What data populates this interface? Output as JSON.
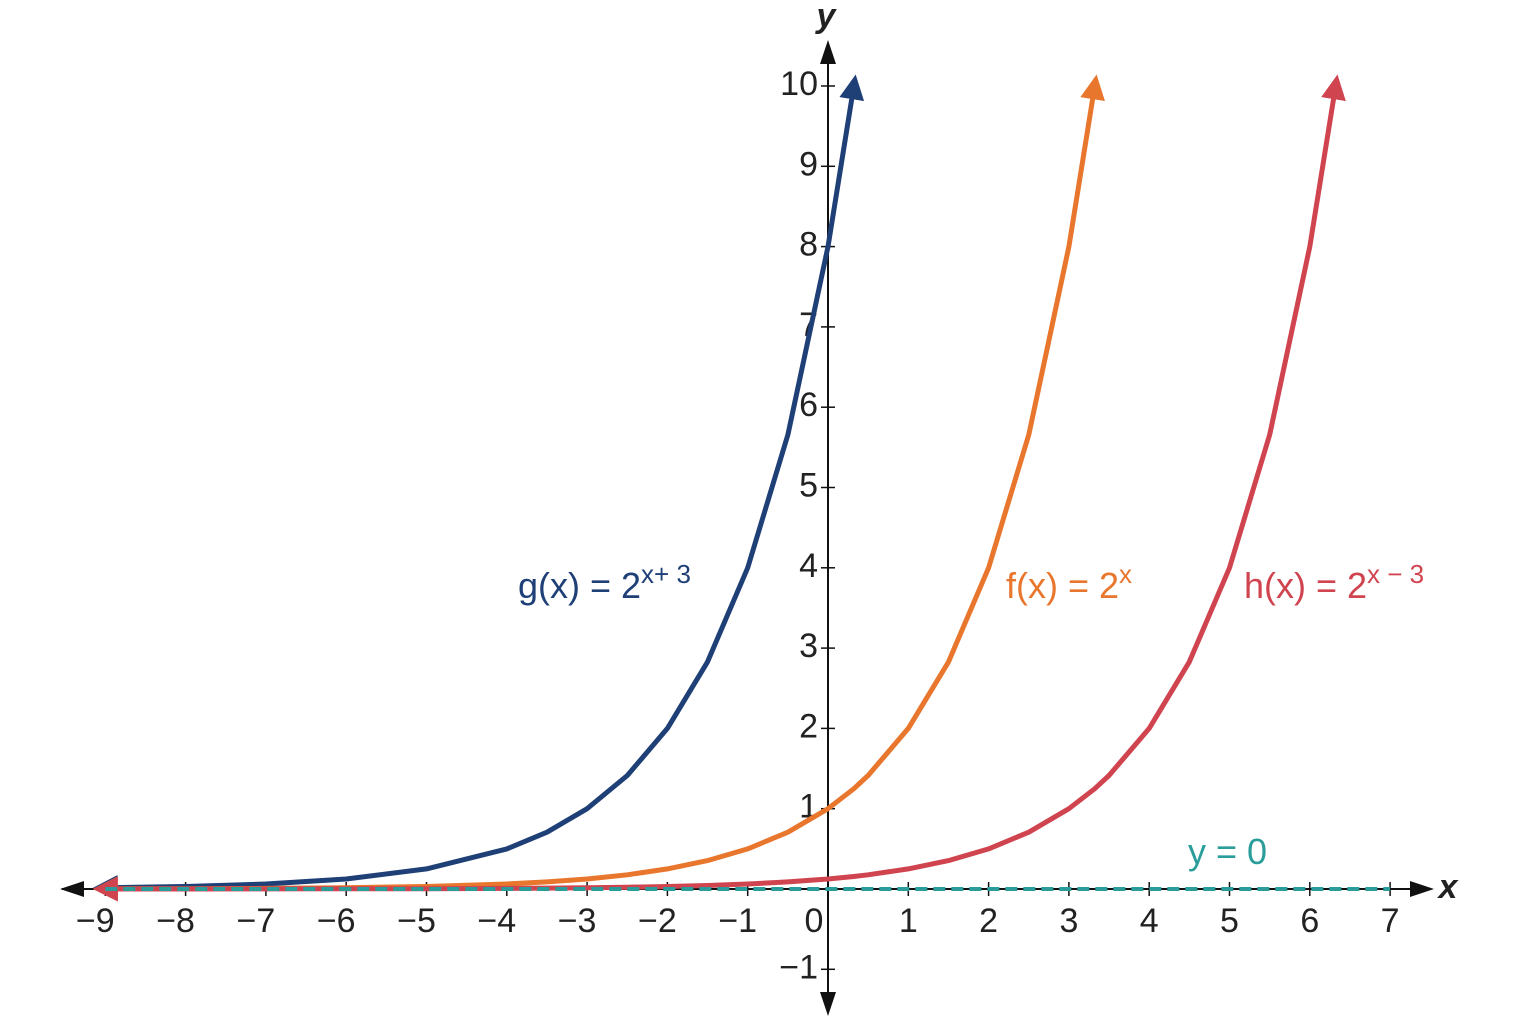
{
  "chart_data": {
    "type": "line",
    "x_label": "x",
    "y_label": "y",
    "xlim": [
      -9.5,
      7.5
    ],
    "ylim": [
      -1.5,
      10.5
    ],
    "xticks": [
      {
        "value": -9,
        "label": "−9"
      },
      {
        "value": -8,
        "label": "−8"
      },
      {
        "value": -7,
        "label": "−7"
      },
      {
        "value": -6,
        "label": "−6"
      },
      {
        "value": -5,
        "label": "−5"
      },
      {
        "value": -4,
        "label": "−4"
      },
      {
        "value": -3,
        "label": "−3"
      },
      {
        "value": -2,
        "label": "−2"
      },
      {
        "value": -1,
        "label": "−1"
      },
      0,
      1,
      2,
      3,
      4,
      5,
      6,
      7
    ],
    "yticks": [
      {
        "value": -1,
        "label": "−1"
      },
      1,
      2,
      3,
      4,
      5,
      6,
      7,
      8,
      9,
      10
    ],
    "x": [
      -9,
      -8,
      -7,
      -6,
      -5,
      -4,
      -3.5,
      -3,
      -2.5,
      -2,
      -1.5,
      -1,
      -0.5,
      0,
      0.32,
      0.5,
      1,
      1.5,
      2,
      2.5,
      3,
      3.32,
      3.5,
      4,
      4.5,
      5,
      5.5,
      6,
      6.32,
      7
    ],
    "series": [
      {
        "name": "g(x) = 2",
        "name_sup": "x+ 3",
        "color": "#1f3f77",
        "values": [
          0.0156,
          0.0313,
          0.0625,
          0.125,
          0.25,
          0.5,
          0.707,
          1,
          1.414,
          2,
          2.828,
          4,
          5.657,
          8,
          9.99,
          null,
          null,
          null,
          null,
          null,
          null,
          null,
          null,
          null,
          null,
          null,
          null,
          null,
          null,
          null
        ]
      },
      {
        "name": "f(x) = 2",
        "name_sup": "x",
        "color": "#e8762d",
        "values": [
          0.002,
          0.0039,
          0.0078,
          0.0156,
          0.0313,
          0.0625,
          0.0884,
          0.125,
          0.177,
          0.25,
          0.354,
          0.5,
          0.707,
          1,
          1.248,
          1.414,
          2,
          2.828,
          4,
          5.657,
          8,
          9.99,
          null,
          null,
          null,
          null,
          null,
          null,
          null,
          null
        ]
      },
      {
        "name": "h(x) = 2",
        "name_sup": "x − 3",
        "color": "#d0444f",
        "values": [
          0.0002,
          0.0005,
          0.001,
          0.002,
          0.0039,
          0.0078,
          0.011,
          0.0156,
          0.0221,
          0.0313,
          0.0442,
          0.0625,
          0.0884,
          0.125,
          0.156,
          0.177,
          0.25,
          0.354,
          0.5,
          0.707,
          1,
          1.248,
          1.414,
          2,
          2.828,
          4,
          5.657,
          8,
          9.99,
          null
        ]
      },
      {
        "name": "y = 0",
        "color": "#2a9d9a",
        "dash": true,
        "values": [
          0,
          0,
          0,
          0,
          0,
          0,
          0,
          0,
          0,
          0,
          0,
          0,
          0,
          0,
          0,
          0,
          0,
          0,
          0,
          0,
          0,
          0,
          0,
          0,
          0,
          0,
          0,
          0,
          0,
          0
        ]
      }
    ]
  }
}
